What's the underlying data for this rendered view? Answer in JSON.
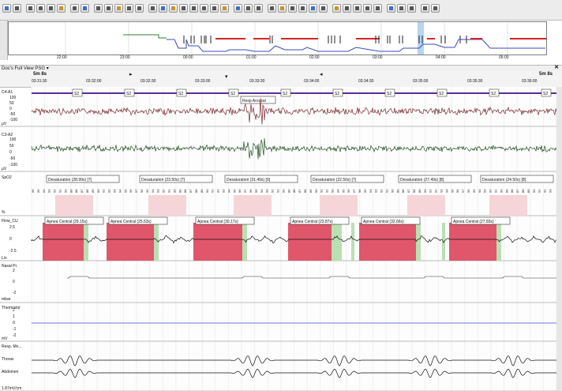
{
  "toolbar": {
    "buttons": [
      "new-file-icon",
      "open-folder-icon",
      "save-icon",
      "copy-icon",
      "undo-icon",
      "redo-icon",
      "print-icon",
      "properties-icon",
      "montage-icon",
      "marker-icon",
      "diamond-icon",
      "filter-icon",
      "grid-icon",
      "event-icon",
      "event-icon",
      "event-icon",
      "event-icon",
      "event-icon",
      "event-icon",
      "event-icon",
      "event-icon",
      "search-icon",
      "measure-icon",
      "crosshair-icon",
      "layout-icon",
      "layout-icon",
      "layout-icon",
      "layout-icon",
      "layout-icon",
      "layout-icon",
      "stop-icon",
      "skip-start-icon",
      "step-back-icon",
      "play-icon",
      "fast-forward-icon",
      "skip-end-icon",
      "pause-icon",
      "record-icon",
      "headphone-icon",
      "volume-icon"
    ]
  },
  "hypnogram": {
    "times": [
      "22:00",
      "23:00",
      "00:00",
      "01:00",
      "02:00",
      "03:00",
      "04:00",
      "05:00"
    ]
  },
  "panel": {
    "title": "Doc's Full View PSG ▾",
    "close": "✕"
  },
  "ruler": {
    "scale_left": "5m 8s",
    "scale_right": "5m 8s",
    "times": [
      "03:31:30",
      "03:32:00",
      "03:32:30",
      "03:33:00",
      "03:33:30",
      "03:34:00",
      "03:34:30",
      "03:35:00",
      "03:35:30",
      "03:36:00"
    ]
  },
  "channels": {
    "c4": {
      "name": "C4-A1",
      "unit": "μV",
      "ticks": [
        "100",
        "50",
        "0",
        "-50",
        "-100"
      ]
    },
    "c3": {
      "name": "C3-A2",
      "unit": "μV",
      "ticks": [
        "100",
        "50",
        "0",
        "-50",
        "-100"
      ]
    },
    "spo2": {
      "name": "SpO2",
      "unit": "%"
    },
    "flow": {
      "name": "Flow_CU",
      "unit": "L/s",
      "ticks": [
        "2.5",
        "0",
        "-2.5"
      ]
    },
    "nasal": {
      "name": "Nasal Pr.",
      "unit": "mbar",
      "ticks": [
        "2",
        "0",
        "-2"
      ]
    },
    "thermistor": {
      "name": "Thermistor",
      "unit": "mV",
      "ticks": [
        "2",
        "1",
        "0",
        "-1",
        "-2"
      ]
    },
    "resp": {
      "name": "Resp. Mo...",
      "thorax": "Thorax",
      "abdomen": "Abdomen",
      "unit": "1.87mV/cm"
    }
  },
  "stage_label": "S2",
  "arousal_label": "Resp Arousal",
  "desaturations": [
    "Desaturation (28.99s) [7]",
    "Desaturation (23.50s) [7]",
    "Desaturation (31.49s) [9]",
    "Desaturation (22.50s) [7]",
    "Desaturation (27.49s) [8]",
    "Desaturation (24.50s) [8]"
  ],
  "apneas": [
    "Apnea Central (29.15s)",
    "Apnea Central (25.63s)",
    "Apnea Central (30.17s)",
    "Apnea Central (23.87s)",
    "Apnea Central (32.66s)",
    "Apnea Central (27.83s)"
  ],
  "spo2_values": [
    "96",
    "95",
    "94",
    "93",
    "92",
    "91",
    "90",
    "89",
    "88",
    "87",
    "88",
    "89",
    "90",
    "91",
    "92",
    "93",
    "94",
    "95",
    "96",
    "97"
  ],
  "colors": {
    "eeg_c4": "#7a2a2e",
    "eeg_c3": "#1f4d1f",
    "apnea_fill": "#e0566b",
    "desat_fill": "#f6d5d8",
    "recovery_fill": "#b9e0b3",
    "stage_line": "#5b2d9a",
    "hyp_red": "#d62525",
    "hyp_green": "#2f7d2f",
    "hyp_blue": "#3b4bb8",
    "thermistor_line": "#4050c8"
  }
}
